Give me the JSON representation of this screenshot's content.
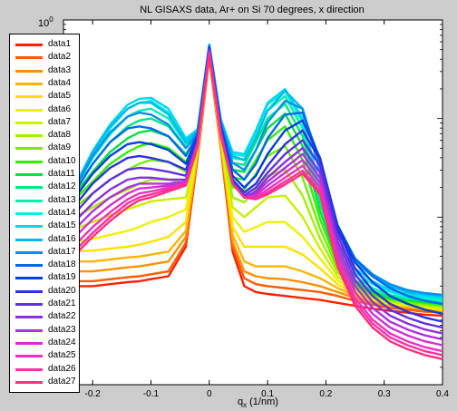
{
  "chart_data": {
    "type": "line",
    "title": "NL GISAXS data, Ar+ on Si 70 degrees, x direction",
    "xlabel": "q",
    "xlabel_sub": "x",
    "xlabel_unit": "(1/nm)",
    "xlim": [
      -0.25,
      0.4
    ],
    "yscale": "log",
    "ytick_top_base": "10",
    "ytick_top_exp": "0",
    "xticks": [
      "-0.2",
      "-0.1",
      "0",
      "0.1",
      "0.2",
      "0.3",
      "0.4"
    ],
    "x": [
      -0.23,
      -0.2,
      -0.17,
      -0.14,
      -0.12,
      -0.1,
      -0.07,
      -0.04,
      -0.02,
      0,
      0.02,
      0.04,
      0.06,
      0.08,
      0.1,
      0.13,
      0.16,
      0.19,
      0.22,
      0.25,
      0.28,
      0.31,
      0.34,
      0.37,
      0.4
    ],
    "series": [
      {
        "name": "data1",
        "color": "#ff2000",
        "values": [
          -2.7,
          -2.7,
          -2.68,
          -2.66,
          -2.65,
          -2.63,
          -2.6,
          -2.3,
          -1.4,
          -0.38,
          -1.3,
          -2.35,
          -2.7,
          -2.76,
          -2.78,
          -2.8,
          -2.82,
          -2.84,
          -2.87,
          -2.9,
          -2.93,
          -2.95,
          -2.97,
          -2.99,
          -3.0
        ]
      },
      {
        "name": "data2",
        "color": "#ff5a00",
        "values": [
          -2.65,
          -2.65,
          -2.63,
          -2.61,
          -2.6,
          -2.58,
          -2.55,
          -2.26,
          -1.38,
          -0.37,
          -1.28,
          -2.3,
          -2.62,
          -2.68,
          -2.7,
          -2.72,
          -2.74,
          -2.76,
          -2.8,
          -2.85,
          -2.89,
          -2.92,
          -2.94,
          -2.96,
          -2.97
        ]
      },
      {
        "name": "data3",
        "color": "#ff9000",
        "values": [
          -2.55,
          -2.55,
          -2.53,
          -2.51,
          -2.5,
          -2.48,
          -2.45,
          -2.2,
          -1.36,
          -0.36,
          -1.26,
          -2.25,
          -2.55,
          -2.6,
          -2.62,
          -2.63,
          -2.66,
          -2.7,
          -2.76,
          -2.82,
          -2.87,
          -2.9,
          -2.92,
          -2.94,
          -2.96
        ]
      },
      {
        "name": "data4",
        "color": "#ffb400",
        "values": [
          -2.45,
          -2.45,
          -2.43,
          -2.41,
          -2.4,
          -2.38,
          -2.35,
          -2.14,
          -1.34,
          -0.35,
          -1.24,
          -2.18,
          -2.45,
          -2.5,
          -2.5,
          -2.5,
          -2.55,
          -2.62,
          -2.72,
          -2.8,
          -2.85,
          -2.89,
          -2.91,
          -2.93,
          -2.95
        ]
      },
      {
        "name": "data5",
        "color": "#ffe000",
        "values": [
          -2.35,
          -2.34,
          -2.32,
          -2.3,
          -2.28,
          -2.25,
          -2.2,
          -2.05,
          -1.32,
          -0.34,
          -1.22,
          -2.1,
          -2.3,
          -2.3,
          -2.3,
          -2.3,
          -2.38,
          -2.52,
          -2.68,
          -2.78,
          -2.84,
          -2.88,
          -2.9,
          -2.92,
          -2.94
        ]
      },
      {
        "name": "data6",
        "color": "#f0f000",
        "values": [
          -2.25,
          -2.22,
          -2.18,
          -2.14,
          -2.1,
          -2.05,
          -2.0,
          -1.92,
          -1.3,
          -0.33,
          -1.2,
          -2.0,
          -2.15,
          -2.1,
          -2.05,
          -2.05,
          -2.2,
          -2.42,
          -2.64,
          -2.76,
          -2.83,
          -2.87,
          -2.89,
          -2.91,
          -2.93
        ]
      },
      {
        "name": "data7",
        "color": "#c8f000",
        "values": [
          -2.12,
          -2.05,
          -1.98,
          -1.92,
          -1.88,
          -1.84,
          -1.82,
          -1.8,
          -1.28,
          -0.32,
          -1.18,
          -1.9,
          -2.0,
          -1.9,
          -1.8,
          -1.78,
          -2.0,
          -2.32,
          -2.6,
          -2.74,
          -2.82,
          -2.86,
          -2.88,
          -2.9,
          -2.92
        ]
      },
      {
        "name": "data8",
        "color": "#a0f000",
        "values": [
          -2.0,
          -1.9,
          -1.8,
          -1.72,
          -1.66,
          -1.62,
          -1.62,
          -1.66,
          -1.25,
          -0.31,
          -1.16,
          -1.8,
          -1.85,
          -1.72,
          -1.58,
          -1.52,
          -1.78,
          -2.22,
          -2.56,
          -2.72,
          -2.8,
          -2.85,
          -2.87,
          -2.89,
          -2.91
        ]
      },
      {
        "name": "data9",
        "color": "#70f000",
        "values": [
          -1.9,
          -1.76,
          -1.62,
          -1.52,
          -1.46,
          -1.42,
          -1.44,
          -1.54,
          -1.22,
          -0.3,
          -1.13,
          -1.7,
          -1.72,
          -1.56,
          -1.38,
          -1.28,
          -1.6,
          -2.12,
          -2.52,
          -2.7,
          -2.79,
          -2.84,
          -2.86,
          -2.88,
          -2.9
        ]
      },
      {
        "name": "data10",
        "color": "#30f000",
        "values": [
          -1.82,
          -1.64,
          -1.46,
          -1.34,
          -1.28,
          -1.25,
          -1.3,
          -1.44,
          -1.2,
          -0.29,
          -1.1,
          -1.6,
          -1.62,
          -1.42,
          -1.22,
          -1.08,
          -1.42,
          -2.02,
          -2.48,
          -2.68,
          -2.78,
          -2.83,
          -2.85,
          -2.87,
          -2.89
        ]
      },
      {
        "name": "data11",
        "color": "#00e040",
        "values": [
          -1.76,
          -1.54,
          -1.34,
          -1.2,
          -1.14,
          -1.12,
          -1.18,
          -1.36,
          -1.18,
          -0.28,
          -1.08,
          -1.52,
          -1.54,
          -1.32,
          -1.1,
          -0.95,
          -1.28,
          -1.94,
          -2.44,
          -2.66,
          -2.76,
          -2.82,
          -2.84,
          -2.86,
          -2.88
        ]
      },
      {
        "name": "data12",
        "color": "#00e880",
        "values": [
          -1.72,
          -1.46,
          -1.24,
          -1.08,
          -1.02,
          -1.0,
          -1.08,
          -1.3,
          -1.16,
          -0.27,
          -1.06,
          -1.45,
          -1.47,
          -1.24,
          -1.0,
          -0.85,
          -1.18,
          -1.86,
          -2.4,
          -2.64,
          -2.75,
          -2.81,
          -2.83,
          -2.85,
          -2.87
        ]
      },
      {
        "name": "data13",
        "color": "#00f0b0",
        "values": [
          -1.7,
          -1.4,
          -1.16,
          -0.98,
          -0.92,
          -0.9,
          -1.0,
          -1.26,
          -1.14,
          -0.26,
          -1.04,
          -1.4,
          -1.42,
          -1.18,
          -0.92,
          -0.77,
          -1.1,
          -1.8,
          -2.36,
          -2.6,
          -2.72,
          -2.79,
          -2.82,
          -2.84,
          -2.86
        ]
      },
      {
        "name": "data14",
        "color": "#00f0e0",
        "values": [
          -1.68,
          -1.36,
          -1.1,
          -0.9,
          -0.84,
          -0.82,
          -0.94,
          -1.22,
          -1.12,
          -0.25,
          -1.02,
          -1.36,
          -1.38,
          -1.14,
          -0.86,
          -0.72,
          -1.04,
          -1.74,
          -2.3,
          -2.56,
          -2.68,
          -2.76,
          -2.8,
          -2.82,
          -2.84
        ]
      },
      {
        "name": "data15",
        "color": "#00d8f0",
        "values": [
          -1.68,
          -1.33,
          -1.06,
          -0.86,
          -0.8,
          -0.79,
          -0.9,
          -1.2,
          -1.11,
          -0.25,
          -1.01,
          -1.34,
          -1.36,
          -1.12,
          -0.84,
          -0.7,
          -1.0,
          -1.7,
          -2.26,
          -2.52,
          -2.65,
          -2.74,
          -2.78,
          -2.8,
          -2.82
        ]
      },
      {
        "name": "data16",
        "color": "#00b8f0",
        "values": [
          -1.68,
          -1.34,
          -1.08,
          -0.9,
          -0.84,
          -0.84,
          -0.96,
          -1.24,
          -1.12,
          -0.25,
          -1.02,
          -1.38,
          -1.42,
          -1.2,
          -0.92,
          -0.72,
          -0.9,
          -1.55,
          -2.15,
          -2.45,
          -2.6,
          -2.7,
          -2.76,
          -2.78,
          -2.8
        ]
      },
      {
        "name": "data17",
        "color": "#0090f0",
        "values": [
          -1.7,
          -1.38,
          -1.14,
          -0.98,
          -0.94,
          -0.96,
          -1.06,
          -1.3,
          -1.14,
          -0.26,
          -1.04,
          -1.45,
          -1.52,
          -1.32,
          -1.04,
          -0.82,
          -0.9,
          -1.48,
          -2.1,
          -2.42,
          -2.58,
          -2.68,
          -2.74,
          -2.77,
          -2.79
        ]
      },
      {
        "name": "data18",
        "color": "#0068f0",
        "values": [
          -1.74,
          -1.46,
          -1.24,
          -1.1,
          -1.08,
          -1.1,
          -1.18,
          -1.38,
          -1.16,
          -0.27,
          -1.06,
          -1.52,
          -1.62,
          -1.46,
          -1.2,
          -0.96,
          -0.94,
          -1.42,
          -2.08,
          -2.42,
          -2.6,
          -2.72,
          -2.8,
          -2.85,
          -2.88
        ]
      },
      {
        "name": "data19",
        "color": "#0040e0",
        "values": [
          -1.8,
          -1.56,
          -1.38,
          -1.26,
          -1.24,
          -1.26,
          -1.32,
          -1.46,
          -1.18,
          -0.28,
          -1.08,
          -1.58,
          -1.7,
          -1.58,
          -1.36,
          -1.12,
          -1.02,
          -1.4,
          -2.08,
          -2.46,
          -2.66,
          -2.8,
          -2.88,
          -2.94,
          -2.98
        ]
      },
      {
        "name": "data20",
        "color": "#3030e0",
        "values": [
          -1.88,
          -1.66,
          -1.5,
          -1.4,
          -1.38,
          -1.4,
          -1.44,
          -1.52,
          -1.2,
          -0.29,
          -1.1,
          -1.62,
          -1.75,
          -1.66,
          -1.48,
          -1.26,
          -1.12,
          -1.42,
          -2.12,
          -2.52,
          -2.74,
          -2.88,
          -2.96,
          -3.02,
          -3.06
        ]
      },
      {
        "name": "data21",
        "color": "#6030e0",
        "values": [
          -1.96,
          -1.76,
          -1.62,
          -1.52,
          -1.5,
          -1.51,
          -1.54,
          -1.58,
          -1.22,
          -0.3,
          -1.12,
          -1.65,
          -1.78,
          -1.7,
          -1.55,
          -1.36,
          -1.22,
          -1.48,
          -2.18,
          -2.58,
          -2.8,
          -2.94,
          -3.02,
          -3.08,
          -3.12
        ]
      },
      {
        "name": "data22",
        "color": "#8830e0",
        "values": [
          -2.04,
          -1.86,
          -1.72,
          -1.62,
          -1.6,
          -1.6,
          -1.62,
          -1.62,
          -1.24,
          -0.31,
          -1.14,
          -1.66,
          -1.8,
          -1.74,
          -1.6,
          -1.44,
          -1.3,
          -1.55,
          -2.24,
          -2.64,
          -2.86,
          -3.0,
          -3.08,
          -3.14,
          -3.18
        ]
      },
      {
        "name": "data23",
        "color": "#b030e0",
        "values": [
          -2.12,
          -1.94,
          -1.8,
          -1.7,
          -1.66,
          -1.66,
          -1.66,
          -1.64,
          -1.25,
          -0.32,
          -1.15,
          -1.66,
          -1.8,
          -1.76,
          -1.64,
          -1.5,
          -1.36,
          -1.6,
          -2.3,
          -2.7,
          -2.92,
          -3.06,
          -3.14,
          -3.2,
          -3.24
        ]
      },
      {
        "name": "data24",
        "color": "#d030d0",
        "values": [
          -2.2,
          -2.02,
          -1.88,
          -1.76,
          -1.71,
          -1.7,
          -1.68,
          -1.65,
          -1.26,
          -0.33,
          -1.16,
          -1.66,
          -1.8,
          -1.78,
          -1.68,
          -1.55,
          -1.42,
          -1.65,
          -2.36,
          -2.76,
          -2.98,
          -3.12,
          -3.2,
          -3.26,
          -3.3
        ]
      },
      {
        "name": "data25",
        "color": "#f030c0",
        "values": [
          -2.28,
          -2.1,
          -1.95,
          -1.82,
          -1.76,
          -1.74,
          -1.7,
          -1.66,
          -1.27,
          -0.34,
          -1.17,
          -1.66,
          -1.8,
          -1.8,
          -1.72,
          -1.6,
          -1.48,
          -1.7,
          -2.42,
          -2.82,
          -3.04,
          -3.18,
          -3.26,
          -3.32,
          -3.36
        ]
      },
      {
        "name": "data26",
        "color": "#ff30a0",
        "values": [
          -2.34,
          -2.16,
          -2.0,
          -1.86,
          -1.8,
          -1.77,
          -1.72,
          -1.67,
          -1.28,
          -0.35,
          -1.18,
          -1.66,
          -1.8,
          -1.81,
          -1.75,
          -1.64,
          -1.53,
          -1.74,
          -2.46,
          -2.86,
          -3.08,
          -3.22,
          -3.3,
          -3.36,
          -3.4
        ]
      },
      {
        "name": "data27",
        "color": "#ff3080",
        "values": [
          -2.38,
          -2.2,
          -2.04,
          -1.9,
          -1.83,
          -1.8,
          -1.74,
          -1.68,
          -1.28,
          -0.35,
          -1.18,
          -1.66,
          -1.8,
          -1.82,
          -1.77,
          -1.67,
          -1.56,
          -1.77,
          -2.5,
          -2.9,
          -3.12,
          -3.26,
          -3.34,
          -3.4,
          -3.44
        ]
      }
    ]
  }
}
